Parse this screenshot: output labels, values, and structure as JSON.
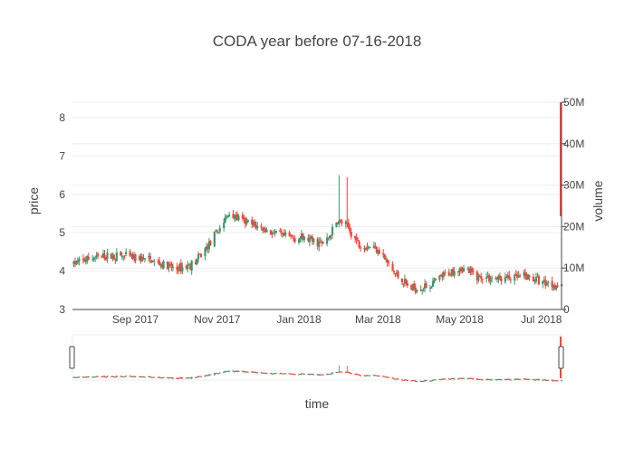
{
  "chart_data": {
    "type": "candlestick",
    "title": "CODA year before 07-16-2018",
    "xlabel": "time",
    "ylabel": "price",
    "y2label": "volume",
    "ylim": [
      3,
      8.4
    ],
    "y2lim": [
      0,
      50000000
    ],
    "y_ticks": [
      3,
      4,
      5,
      6,
      7,
      8
    ],
    "y2_ticks": [
      {
        "value": 0,
        "label": "0"
      },
      {
        "value": 10000000,
        "label": "10M"
      },
      {
        "value": 20000000,
        "label": "20M"
      },
      {
        "value": 30000000,
        "label": "30M"
      },
      {
        "value": 40000000,
        "label": "40M"
      },
      {
        "value": 50000000,
        "label": "50M"
      }
    ],
    "x_ticks": [
      {
        "date": "2017-09-01",
        "label": "Sep 2017"
      },
      {
        "date": "2017-11-01",
        "label": "Nov 2017"
      },
      {
        "date": "2018-01-01",
        "label": "Jan 2018"
      },
      {
        "date": "2018-03-01",
        "label": "Mar 2018"
      },
      {
        "date": "2018-05-01",
        "label": "May 2018"
      },
      {
        "date": "2018-07-01",
        "label": "Jul 2018"
      }
    ],
    "xrange": [
      "2017-07-16",
      "2018-07-16"
    ],
    "grid": true,
    "legend": "none",
    "colors": {
      "increasing": "#3d9970",
      "decreasing": "#ff4136",
      "grid": "#eeeeee",
      "axis": "#444444",
      "title": "#444444"
    },
    "anchors": [
      {
        "date": "2017-07-17",
        "close": 4.2
      },
      {
        "date": "2017-08-01",
        "close": 4.35
      },
      {
        "date": "2017-08-20",
        "close": 4.4
      },
      {
        "date": "2017-09-10",
        "close": 4.3
      },
      {
        "date": "2017-10-01",
        "close": 4.05
      },
      {
        "date": "2017-10-15",
        "close": 4.2
      },
      {
        "date": "2017-10-28",
        "close": 4.8
      },
      {
        "date": "2017-11-10",
        "close": 5.5
      },
      {
        "date": "2017-11-20",
        "close": 5.3
      },
      {
        "date": "2017-12-05",
        "close": 5.1
      },
      {
        "date": "2017-12-20",
        "close": 4.9
      },
      {
        "date": "2018-01-05",
        "close": 4.85
      },
      {
        "date": "2018-01-20",
        "close": 4.7
      },
      {
        "date": "2018-01-30",
        "close": 5.3
      },
      {
        "date": "2018-02-05",
        "close": 5.2
      },
      {
        "date": "2018-02-15",
        "close": 4.7
      },
      {
        "date": "2018-03-01",
        "close": 4.6
      },
      {
        "date": "2018-03-12",
        "close": 4.0
      },
      {
        "date": "2018-03-25",
        "close": 3.55
      },
      {
        "date": "2018-04-08",
        "close": 3.6
      },
      {
        "date": "2018-04-20",
        "close": 3.9
      },
      {
        "date": "2018-05-01",
        "close": 4.1
      },
      {
        "date": "2018-05-15",
        "close": 3.85
      },
      {
        "date": "2018-06-01",
        "close": 3.8
      },
      {
        "date": "2018-06-20",
        "close": 3.85
      },
      {
        "date": "2018-07-16",
        "close": 3.6
      }
    ],
    "spikes": [
      {
        "date": "2018-01-31",
        "high": 6.5
      },
      {
        "date": "2018-02-06",
        "high": 6.45
      }
    ],
    "volume_spike": {
      "date": "2018-07-16",
      "volume": 50000000
    }
  }
}
